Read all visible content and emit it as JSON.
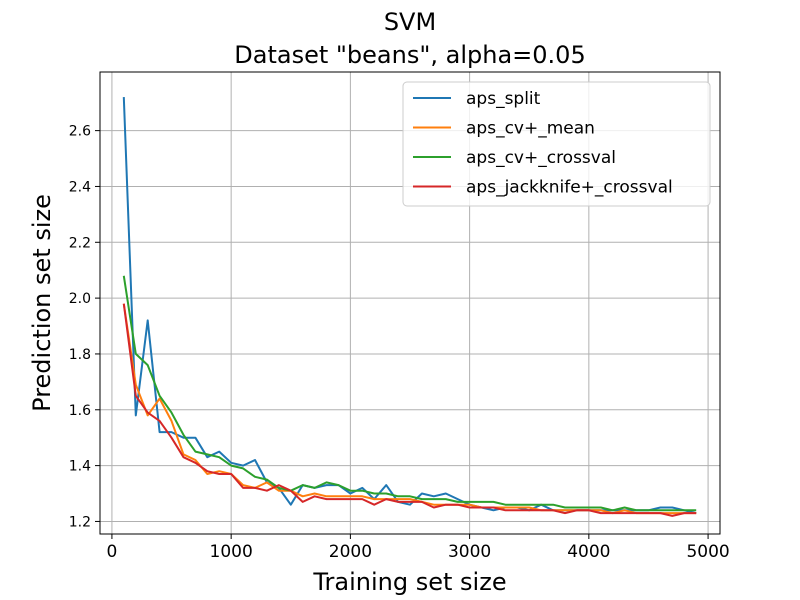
{
  "chart_data": {
    "type": "line",
    "title": "SVM",
    "subtitle": "Dataset \"beans\", alpha=0.05",
    "xlabel": "Training set size",
    "ylabel": "Prediction set size",
    "xlim": [
      -100,
      5100
    ],
    "ylim": [
      1.155,
      2.81
    ],
    "x_ticks": [
      0,
      1000,
      2000,
      3000,
      4000,
      5000
    ],
    "y_ticks": [
      1.2,
      1.4,
      1.6,
      1.8,
      2.0,
      2.2,
      2.4,
      2.6
    ],
    "grid": true,
    "legend_position": "top-right",
    "x": [
      100,
      200,
      300,
      400,
      500,
      600,
      700,
      800,
      900,
      1000,
      1100,
      1200,
      1300,
      1400,
      1500,
      1600,
      1700,
      1800,
      1900,
      2000,
      2100,
      2200,
      2300,
      2400,
      2500,
      2600,
      2700,
      2800,
      2900,
      3000,
      3100,
      3200,
      3300,
      3400,
      3500,
      3600,
      3700,
      3800,
      3900,
      4000,
      4100,
      4200,
      4300,
      4400,
      4500,
      4600,
      4700,
      4800,
      4900
    ],
    "series": [
      {
        "name": "aps_split",
        "color": "#1f77b4",
        "values": [
          2.72,
          1.58,
          1.92,
          1.52,
          1.52,
          1.5,
          1.5,
          1.43,
          1.45,
          1.41,
          1.4,
          1.42,
          1.34,
          1.32,
          1.26,
          1.33,
          1.32,
          1.33,
          1.33,
          1.3,
          1.32,
          1.28,
          1.33,
          1.27,
          1.26,
          1.3,
          1.29,
          1.3,
          1.28,
          1.26,
          1.25,
          1.24,
          1.25,
          1.25,
          1.24,
          1.26,
          1.24,
          1.24,
          1.24,
          1.24,
          1.24,
          1.24,
          1.24,
          1.24,
          1.24,
          1.25,
          1.25,
          1.24,
          1.23
        ]
      },
      {
        "name": "aps_cv+_mean",
        "color": "#ff7f0e",
        "values": [
          1.98,
          1.69,
          1.58,
          1.64,
          1.56,
          1.44,
          1.42,
          1.37,
          1.38,
          1.37,
          1.33,
          1.32,
          1.34,
          1.31,
          1.31,
          1.29,
          1.3,
          1.29,
          1.29,
          1.29,
          1.29,
          1.28,
          1.28,
          1.28,
          1.28,
          1.27,
          1.26,
          1.26,
          1.26,
          1.26,
          1.25,
          1.25,
          1.25,
          1.25,
          1.25,
          1.24,
          1.24,
          1.24,
          1.24,
          1.24,
          1.24,
          1.23,
          1.24,
          1.23,
          1.23,
          1.23,
          1.23,
          1.23,
          1.23
        ]
      },
      {
        "name": "aps_cv+_crossval",
        "color": "#2ca02c",
        "values": [
          2.08,
          1.8,
          1.76,
          1.65,
          1.59,
          1.51,
          1.45,
          1.44,
          1.43,
          1.4,
          1.39,
          1.36,
          1.35,
          1.32,
          1.31,
          1.33,
          1.32,
          1.34,
          1.33,
          1.31,
          1.31,
          1.3,
          1.3,
          1.29,
          1.29,
          1.28,
          1.28,
          1.28,
          1.27,
          1.27,
          1.27,
          1.27,
          1.26,
          1.26,
          1.26,
          1.26,
          1.26,
          1.25,
          1.25,
          1.25,
          1.25,
          1.24,
          1.25,
          1.24,
          1.24,
          1.24,
          1.24,
          1.24,
          1.24
        ]
      },
      {
        "name": "aps_jackknife+_crossval",
        "color": "#d62728",
        "values": [
          1.98,
          1.65,
          1.59,
          1.56,
          1.5,
          1.43,
          1.41,
          1.38,
          1.37,
          1.37,
          1.32,
          1.32,
          1.31,
          1.33,
          1.31,
          1.27,
          1.29,
          1.28,
          1.28,
          1.28,
          1.28,
          1.26,
          1.28,
          1.27,
          1.27,
          1.27,
          1.25,
          1.26,
          1.26,
          1.25,
          1.25,
          1.25,
          1.24,
          1.24,
          1.24,
          1.24,
          1.24,
          1.23,
          1.24,
          1.24,
          1.23,
          1.23,
          1.23,
          1.23,
          1.23,
          1.23,
          1.22,
          1.23,
          1.23
        ]
      }
    ]
  }
}
